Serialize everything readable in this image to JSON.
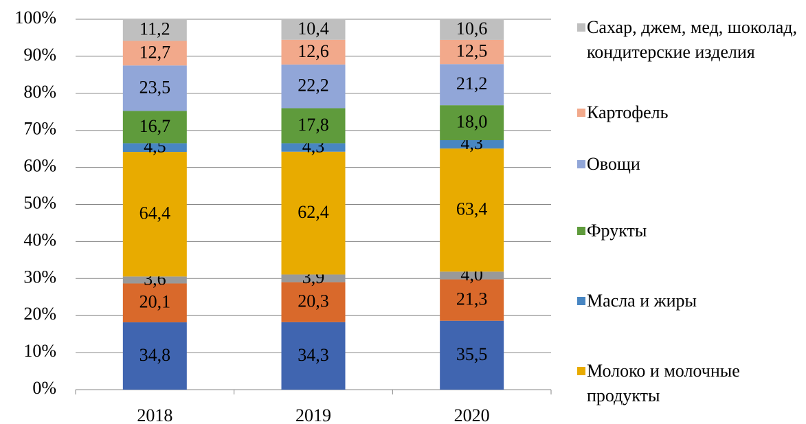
{
  "chart_data": {
    "type": "bar",
    "stacking": "percent",
    "categories": [
      "2018",
      "2019",
      "2020"
    ],
    "ylim": [
      0,
      100
    ],
    "yticks": [
      {
        "value": 0,
        "label": "0%"
      },
      {
        "value": 10,
        "label": "10%"
      },
      {
        "value": 20,
        "label": "20%"
      },
      {
        "value": 30,
        "label": "30%"
      },
      {
        "value": 40,
        "label": "40%"
      },
      {
        "value": 50,
        "label": "50%"
      },
      {
        "value": 60,
        "label": "60%"
      },
      {
        "value": 70,
        "label": "70%"
      },
      {
        "value": 80,
        "label": "80%"
      },
      {
        "value": 90,
        "label": "90%"
      },
      {
        "value": 100,
        "label": "100%"
      }
    ],
    "grid": true,
    "legend": "right",
    "series": [
      {
        "name": null,
        "color": "#4065b0",
        "values": [
          34.8,
          34.3,
          35.5
        ],
        "value_labels": [
          "34,8",
          "34,3",
          "35,5"
        ]
      },
      {
        "name": null,
        "color": "#d9692b",
        "values": [
          20.1,
          20.3,
          21.3
        ],
        "value_labels": [
          "20,1",
          "20,3",
          "21,3"
        ]
      },
      {
        "name": null,
        "color": "#999999",
        "values": [
          3.6,
          3.9,
          4.0
        ],
        "value_labels": [
          "3,6",
          "3,9",
          "4,0"
        ]
      },
      {
        "name": "Молоко и молочные продукты",
        "color": "#e8ab00",
        "values": [
          64.4,
          62.4,
          63.4
        ],
        "value_labels": [
          "64,4",
          "62,4",
          "63,4"
        ]
      },
      {
        "name": "Масла и жиры",
        "color": "#4886c2",
        "values": [
          4.5,
          4.3,
          4.3
        ],
        "value_labels": [
          "4,5",
          "4,3",
          "4,3"
        ]
      },
      {
        "name": "Фрукты",
        "color": "#5f9b3c",
        "values": [
          16.7,
          17.8,
          18.0
        ],
        "value_labels": [
          "16,7",
          "17,8",
          "18,0"
        ]
      },
      {
        "name": "Овощи",
        "color": "#91a6d8",
        "values": [
          23.5,
          22.2,
          21.2
        ],
        "value_labels": [
          "23,5",
          "22,2",
          "21,2"
        ]
      },
      {
        "name": "Картофель",
        "color": "#f2a98b",
        "values": [
          12.7,
          12.6,
          12.5
        ],
        "value_labels": [
          "12,7",
          "12,6",
          "12,5"
        ]
      },
      {
        "name": "Сахар, джем, мед, шоколад, кондитерские изделия",
        "color": "#bfbfbf",
        "values": [
          11.2,
          10.4,
          10.6
        ],
        "value_labels": [
          "11,2",
          "10,4",
          "10,6"
        ]
      }
    ]
  }
}
